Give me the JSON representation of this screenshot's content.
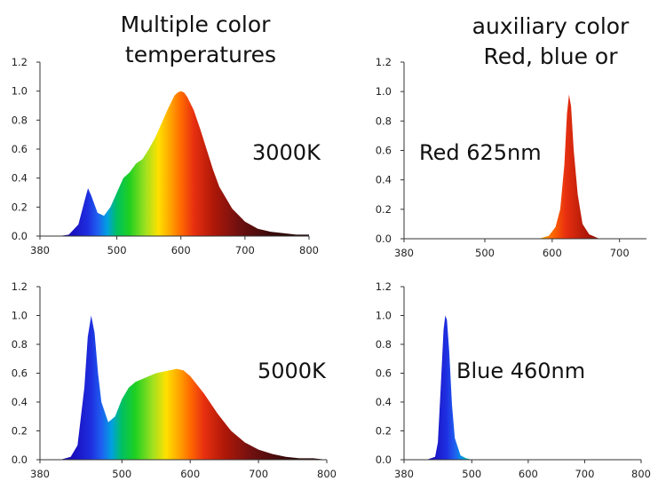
{
  "header": {
    "left_title_line1": "Multiple color",
    "left_title_line2": "temperatures",
    "right_title_line1": "auxiliary color",
    "right_title_line2": "Red, blue or"
  },
  "chart_data": [
    {
      "type": "area",
      "label": "3000K",
      "xlim": [
        380,
        800
      ],
      "ylim": [
        0,
        1.2
      ],
      "xticks": [
        "380",
        "500",
        "600",
        "700",
        "800"
      ],
      "yticks": [
        "0.0",
        "0.2",
        "0.4",
        "0.6",
        "0.8",
        "1.0",
        "1.2"
      ],
      "x": [
        380,
        410,
        425,
        440,
        450,
        455,
        460,
        470,
        480,
        490,
        500,
        510,
        520,
        530,
        540,
        550,
        560,
        570,
        580,
        590,
        595,
        600,
        605,
        610,
        620,
        630,
        640,
        650,
        660,
        680,
        700,
        720,
        740,
        760,
        780,
        800
      ],
      "y": [
        0,
        0,
        0.01,
        0.08,
        0.25,
        0.33,
        0.28,
        0.16,
        0.14,
        0.2,
        0.3,
        0.4,
        0.44,
        0.5,
        0.53,
        0.6,
        0.68,
        0.78,
        0.88,
        0.97,
        0.99,
        1.0,
        0.99,
        0.96,
        0.87,
        0.74,
        0.6,
        0.46,
        0.34,
        0.19,
        0.1,
        0.05,
        0.03,
        0.02,
        0.01,
        0.01
      ]
    },
    {
      "type": "area",
      "label": "Red 625nm",
      "xlim": [
        380,
        740
      ],
      "ylim": [
        0,
        1.2
      ],
      "xticks": [
        "380",
        "500",
        "600",
        "700"
      ],
      "yticks": [
        "0.0",
        "0.2",
        "0.4",
        "0.6",
        "0.8",
        "1.0",
        "1.2"
      ],
      "x": [
        380,
        580,
        595,
        605,
        612,
        618,
        622,
        625,
        628,
        632,
        638,
        645,
        655,
        670,
        740
      ],
      "y": [
        0,
        0,
        0.02,
        0.08,
        0.2,
        0.5,
        0.85,
        0.98,
        0.9,
        0.6,
        0.3,
        0.1,
        0.03,
        0,
        0
      ]
    },
    {
      "type": "area",
      "label": "5000K",
      "xlim": [
        380,
        800
      ],
      "ylim": [
        0,
        1.2
      ],
      "xticks": [
        "380",
        "500",
        "600",
        "700",
        "800"
      ],
      "yticks": [
        "0.0",
        "0.2",
        "0.4",
        "0.6",
        "0.8",
        "1.0",
        "1.2"
      ],
      "x": [
        380,
        410,
        425,
        435,
        445,
        450,
        455,
        460,
        465,
        470,
        480,
        490,
        500,
        510,
        520,
        530,
        540,
        550,
        560,
        570,
        580,
        590,
        600,
        610,
        620,
        630,
        640,
        650,
        660,
        680,
        700,
        720,
        740,
        760,
        780,
        800
      ],
      "y": [
        0,
        0,
        0.02,
        0.1,
        0.5,
        0.85,
        1.0,
        0.88,
        0.6,
        0.4,
        0.26,
        0.3,
        0.42,
        0.5,
        0.54,
        0.56,
        0.58,
        0.6,
        0.61,
        0.62,
        0.63,
        0.62,
        0.58,
        0.52,
        0.46,
        0.39,
        0.32,
        0.26,
        0.2,
        0.12,
        0.07,
        0.04,
        0.02,
        0.01,
        0.01,
        0
      ]
    },
    {
      "type": "area",
      "label": "Blue 460nm",
      "xlim": [
        380,
        800
      ],
      "ylim": [
        0,
        1.2
      ],
      "xticks": [
        "380",
        "500",
        "600",
        "700",
        "800"
      ],
      "yticks": [
        "0.0",
        "0.2",
        "0.4",
        "0.6",
        "0.8",
        "1.0",
        "1.2"
      ],
      "x": [
        380,
        420,
        435,
        440,
        445,
        450,
        453,
        456,
        460,
        465,
        470,
        480,
        490,
        500,
        800
      ],
      "y": [
        0,
        0,
        0.02,
        0.12,
        0.5,
        0.9,
        1.0,
        0.97,
        0.75,
        0.38,
        0.15,
        0.03,
        0.01,
        0,
        0
      ]
    }
  ]
}
